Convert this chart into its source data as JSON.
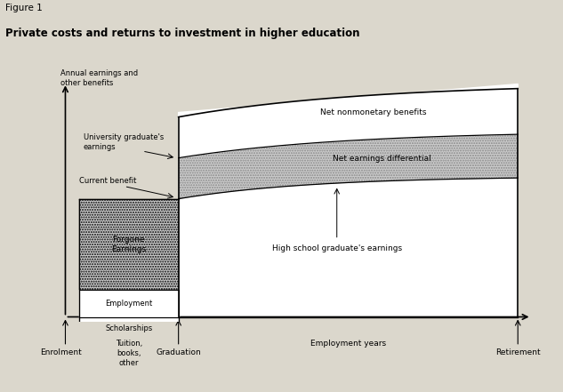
{
  "figure_label": "Figure 1",
  "title": "Private costs and returns to investment in higher education",
  "ylabel": "Annual earnings and\nother benefits",
  "xlabel_enrolment": "Enrolment",
  "xlabel_graduation": "Graduation",
  "xlabel_retirement": "Retirement",
  "xlabel_employment": "Employment years",
  "label_forgone": "Forgone\nEarnings",
  "label_employment_box": "Employment",
  "label_scholarships": "Scholarships",
  "label_tuition": "Tuition,\nbooks,\nother",
  "label_hs_earnings": "High school graduate's earnings",
  "label_net_earnings": "Net earnings differential",
  "label_net_nonmon": "Net nonmonetary benefits",
  "label_univ_earnings": "University graduate's\nearnings",
  "label_current_benefit": "Current benefit",
  "bg_color": "#dbd7cc",
  "plot_bg": "#ffffff"
}
